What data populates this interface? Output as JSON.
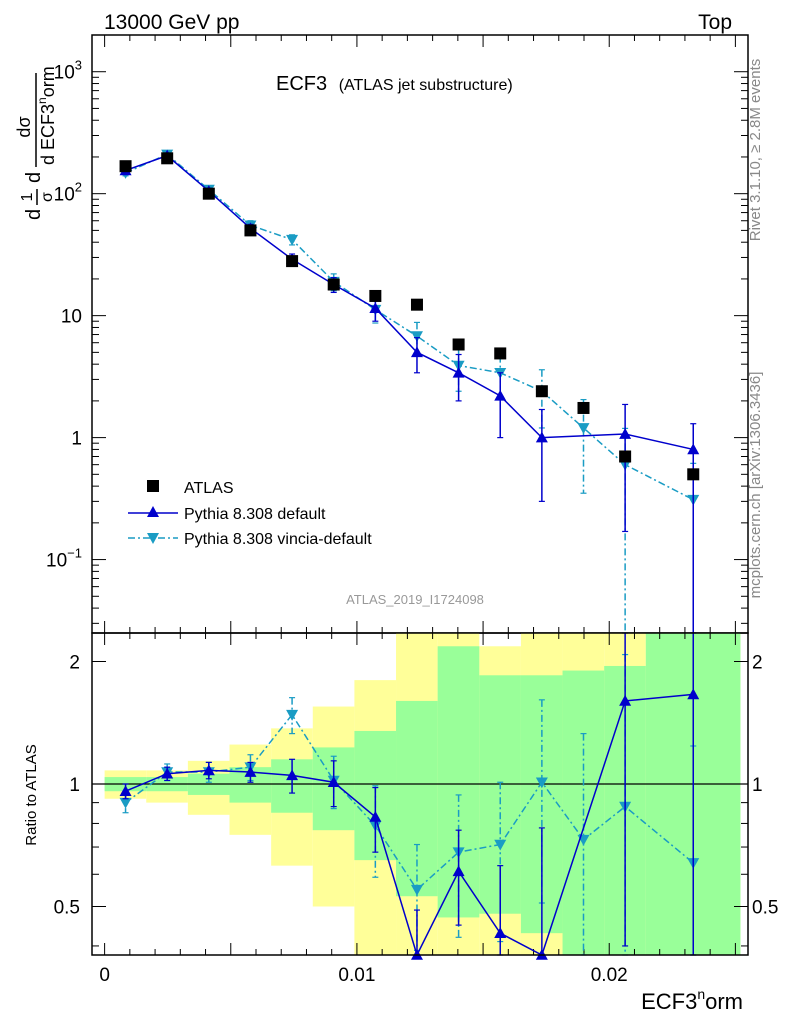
{
  "header": {
    "beam": "13000 GeV pp",
    "process": "Top",
    "title_main": "ECF3",
    "title_sub": "(ATLAS jet substructure)",
    "analysis_id": "ATLAS_2019_I1724098",
    "side_rivet": "Rivet 3.1.10, ≥ 2.8M events",
    "side_mcplots": "mcplots.cern.ch [arXiv:1306.3436]"
  },
  "ylabel_main": {
    "frac1_num": "1",
    "frac1_den": "σ",
    "frac2_num": "dσ",
    "frac2_den": "d ECF3",
    "frac2_den_sup": "n",
    "frac2_den_tail": "orm",
    "d_prefix": "d"
  },
  "ylabel_ratio": "Ratio to ATLAS",
  "xlabel": {
    "base": "ECF3",
    "sup": "n",
    "tail": "orm"
  },
  "legend": [
    {
      "label": "ATLAS"
    },
    {
      "label": "Pythia 8.308 default"
    },
    {
      "label": "Pythia 8.308 vincia-default"
    }
  ],
  "colors": {
    "data": "#000000",
    "pythia_default": "#0000cc",
    "pythia_vincia": "#1a9cc4",
    "band_inner": "#99ff99",
    "band_outer": "#ffff99",
    "side_text": "#888888"
  },
  "main_ticks": [
    {
      "label": "10",
      "sup": "−1",
      "value": 0.1
    },
    {
      "label": "1",
      "sup": "",
      "value": 1
    },
    {
      "label": "10",
      "sup": "",
      "value": 10
    },
    {
      "label": "10",
      "sup": "2",
      "value": 100
    },
    {
      "label": "10",
      "sup": "3",
      "value": 1000
    }
  ],
  "ratio_ticks": [
    {
      "label": "0.5",
      "value": 0.5
    },
    {
      "label": "1",
      "value": 1
    },
    {
      "label": "2",
      "value": 2
    }
  ],
  "x_ticks": [
    {
      "label": "0",
      "value": 0
    },
    {
      "label": "0.01",
      "value": 0.01
    },
    {
      "label": "0.02",
      "value": 0.02
    }
  ],
  "chart_data": {
    "type": "scatter",
    "xlim": [
      -0.0005,
      0.0255
    ],
    "ylim_main": [
      0.025,
      2000
    ],
    "yscale_main": "log",
    "ylim_ratio": [
      0.38,
      2.35
    ],
    "yscale_ratio": "log",
    "legend_position": "bottom-left",
    "bin_edges": [
      0.0,
      0.00165,
      0.0033,
      0.00495,
      0.0066,
      0.00825,
      0.0099,
      0.01155,
      0.0132,
      0.01485,
      0.0165,
      0.01815,
      0.0198,
      0.02145,
      0.0252
    ],
    "x": [
      0.00083,
      0.00248,
      0.00413,
      0.00578,
      0.00743,
      0.00908,
      0.01073,
      0.01238,
      0.01403,
      0.01568,
      0.01733,
      0.01898,
      0.02063,
      0.02333
    ],
    "series": [
      {
        "name": "ATLAS",
        "values": [
          168,
          195,
          100,
          50,
          28,
          18,
          14.5,
          12.3,
          5.8,
          4.9,
          2.4,
          1.75,
          0.7,
          0.5
        ]
      },
      {
        "name": "Pythia 8.308 default",
        "values": [
          155,
          205,
          105,
          52,
          29,
          18,
          11.5,
          5.0,
          3.4,
          2.2,
          1.0,
          0,
          1.07,
          0.8
        ],
        "err_lo": [
          8,
          10,
          6,
          4,
          3,
          2.5,
          2.5,
          1.6,
          1.4,
          1.2,
          0.7,
          0,
          0.9,
          0.8
        ],
        "err_hi": [
          8,
          10,
          6,
          4,
          3,
          2.5,
          2.5,
          1.6,
          1.4,
          1.2,
          0.7,
          0,
          0.8,
          0.5
        ],
        "ratio": [
          0.96,
          1.06,
          1.08,
          1.07,
          1.05,
          1.01,
          0.83,
          0.37,
          0.61,
          0.43,
          0.38,
          0,
          1.6,
          1.66
        ],
        "ratio_lo": [
          0.04,
          0.04,
          0.05,
          0.06,
          0.1,
          0.13,
          0.15,
          0.12,
          0.16,
          0.2,
          0.3,
          0,
          1.2,
          1.5
        ],
        "ratio_hi": [
          0.04,
          0.04,
          0.05,
          0.06,
          0.1,
          0.13,
          0.15,
          0.12,
          0.16,
          0.2,
          0.4,
          0,
          1.5,
          1.5
        ]
      },
      {
        "name": "Pythia 8.308 vincia-default",
        "values": [
          148,
          210,
          108,
          55,
          42,
          19,
          11.2,
          6.8,
          3.9,
          3.4,
          2.4,
          1.2,
          0.6,
          0.31
        ],
        "err_lo": [
          8,
          10,
          6,
          5,
          4,
          3,
          2.5,
          2,
          1.5,
          1.3,
          1.2,
          0.85,
          0.59,
          0.305
        ],
        "err_hi": [
          8,
          10,
          6,
          5,
          4,
          3,
          2.5,
          2,
          1.5,
          1.3,
          1.2,
          0.85,
          0.59,
          0.305
        ],
        "ratio": [
          0.9,
          1.07,
          1.07,
          1.1,
          1.48,
          1.02,
          0.79,
          0.55,
          0.68,
          0.71,
          1.01,
          0.73,
          0.88,
          0.64
        ],
        "ratio_lo": [
          0.05,
          0.05,
          0.06,
          0.08,
          0.15,
          0.15,
          0.2,
          0.16,
          0.26,
          0.3,
          0.5,
          0.4,
          0.6,
          0.5
        ],
        "ratio_hi": [
          0.05,
          0.05,
          0.06,
          0.08,
          0.15,
          0.15,
          0.2,
          0.16,
          0.26,
          0.3,
          0.6,
          0.6,
          1.2,
          0.6
        ]
      }
    ],
    "band_inner": {
      "lo": [
        0.96,
        0.96,
        0.94,
        0.9,
        0.85,
        0.77,
        0.65,
        0.53,
        0.47,
        0.48,
        0.43,
        0.33,
        0.33,
        0.33
      ],
      "hi": [
        1.04,
        1.04,
        1.06,
        1.1,
        1.15,
        1.23,
        1.35,
        1.6,
        2.18,
        1.85,
        1.85,
        1.9,
        1.95,
        2.35
      ]
    },
    "band_outer": {
      "lo": [
        0.92,
        0.9,
        0.84,
        0.75,
        0.63,
        0.5,
        0.33,
        0.33,
        0.33,
        0.33,
        0.33,
        0.33,
        0.33,
        0.33
      ],
      "hi": [
        1.08,
        1.08,
        1.14,
        1.25,
        1.37,
        1.55,
        1.8,
        2.35,
        2.35,
        2.18,
        2.35,
        2.35,
        2.35,
        2.35
      ]
    }
  }
}
